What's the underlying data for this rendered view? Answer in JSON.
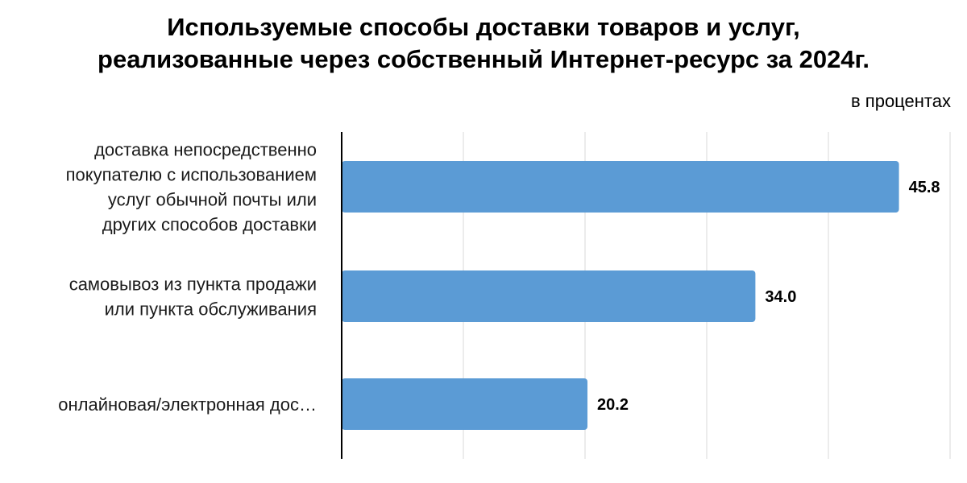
{
  "title": {
    "line1": "Используемые способы доставки товаров и услуг,",
    "line2": "реализованные через собственный Интернет-ресурс за 2024г."
  },
  "unit_label": "в процентах",
  "colors": {
    "bar": "#5b9bd5",
    "grid": "#d9d9d9",
    "axis": "#000000"
  },
  "chart_data": {
    "type": "bar",
    "orientation": "horizontal",
    "categories": [
      [
        "доставка непосредственно",
        "покупателю с использованием",
        "услуг обычной почты или",
        "других способов доставки"
      ],
      [
        "самовывоз из пункта продажи",
        "или пункта обслуживания"
      ],
      [
        "онлайновая/электронная дос…"
      ]
    ],
    "values": [
      45.8,
      34.0,
      20.2
    ],
    "value_labels": [
      "45.8",
      "34.0",
      "20.2"
    ],
    "xlim": [
      0,
      50
    ],
    "grid": true,
    "legend": "none"
  }
}
